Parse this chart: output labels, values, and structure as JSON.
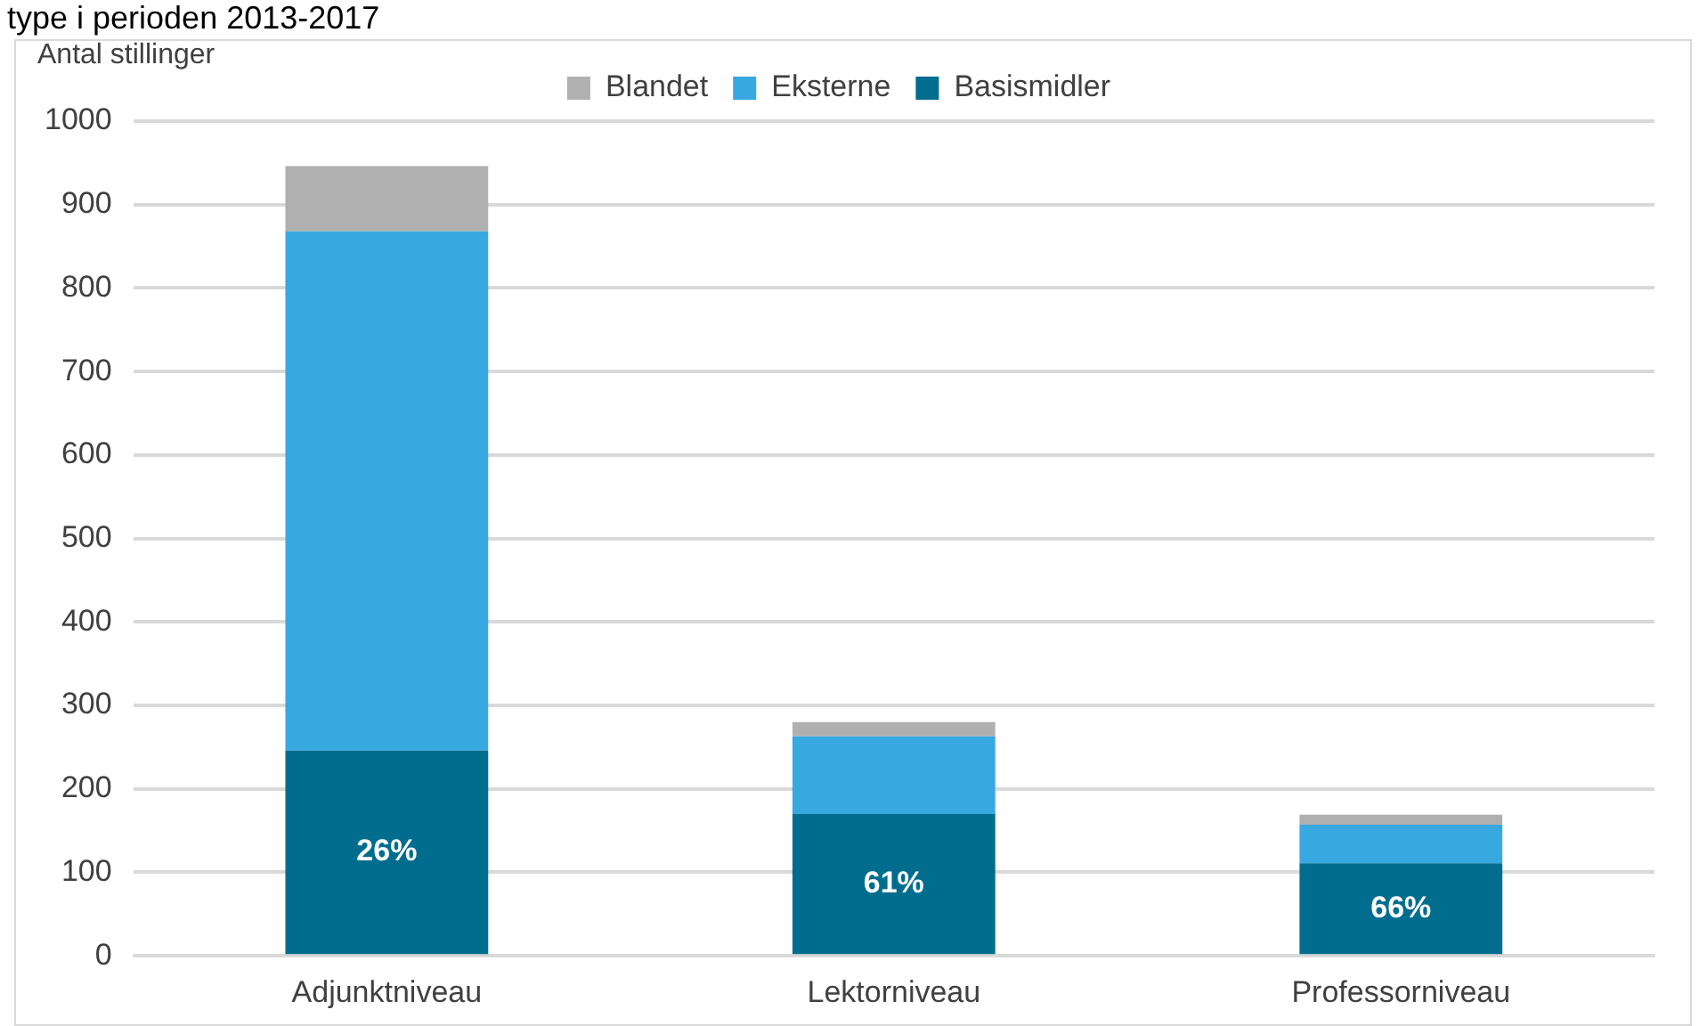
{
  "chart_data": {
    "type": "bar",
    "title": "type i perioden 2013-2017",
    "ylabel": "Antal stillinger",
    "categories": [
      "Adjunktniveau",
      "Lektorniveau",
      "Professorniveau"
    ],
    "annotations": [
      "26%",
      "61%",
      "66%"
    ],
    "stacked": true,
    "ylim": [
      0,
      1000
    ],
    "yticks": [
      0,
      100,
      200,
      300,
      400,
      500,
      600,
      700,
      800,
      900,
      1000
    ],
    "grid": "y",
    "legend": "top",
    "series": [
      {
        "name": "Basismidler",
        "color": "#006d8f",
        "values": [
          246,
          170,
          111
        ]
      },
      {
        "name": "Eksterne",
        "color": "#38a8e0",
        "values": [
          622,
          93,
          46
        ]
      },
      {
        "name": "Blandet",
        "color": "#b0b0b0",
        "values": [
          78,
          17,
          12
        ]
      }
    ]
  }
}
